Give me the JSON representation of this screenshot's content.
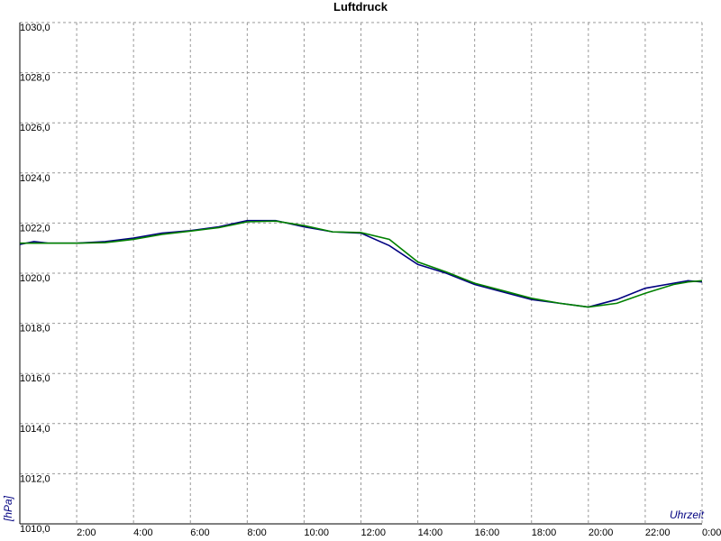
{
  "chart_data": {
    "type": "line",
    "title": "Luftdruck",
    "y_label": "[hPa]",
    "x_label": "Uhrzeit",
    "x": [
      0,
      0.5,
      1,
      2,
      3,
      4,
      5,
      6,
      7,
      8,
      9,
      10,
      11,
      12,
      13,
      14,
      15,
      16,
      17,
      18,
      19,
      20,
      21,
      22,
      23,
      23.5,
      24
    ],
    "series": [
      {
        "color": "#000080",
        "values": [
          1021.15,
          1021.26,
          1021.2,
          1021.2,
          1021.26,
          1021.4,
          1021.6,
          1021.7,
          1021.85,
          1022.1,
          1022.1,
          1021.85,
          1021.65,
          1021.6,
          1021.1,
          1020.35,
          1020.0,
          1019.55,
          1019.25,
          1018.95,
          1018.8,
          1018.65,
          1018.95,
          1019.4,
          1019.6,
          1019.7,
          1019.65
        ]
      },
      {
        "color": "#008000",
        "values": [
          1021.2,
          1021.2,
          1021.2,
          1021.2,
          1021.22,
          1021.35,
          1021.55,
          1021.68,
          1021.82,
          1022.05,
          1022.08,
          1021.9,
          1021.65,
          1021.62,
          1021.35,
          1020.45,
          1020.05,
          1019.6,
          1019.3,
          1019.0,
          1018.8,
          1018.65,
          1018.8,
          1019.2,
          1019.55,
          1019.65,
          1019.7
        ]
      }
    ],
    "xlim": [
      0,
      24
    ],
    "xticks": [
      {
        "value": 2,
        "label": "2:00"
      },
      {
        "value": 4,
        "label": "4:00"
      },
      {
        "value": 6,
        "label": "6:00"
      },
      {
        "value": 8,
        "label": "8:00"
      },
      {
        "value": 10,
        "label": "10:00"
      },
      {
        "value": 12,
        "label": "12:00"
      },
      {
        "value": 14,
        "label": "14:00"
      },
      {
        "value": 16,
        "label": "16:00"
      },
      {
        "value": 18,
        "label": "18:00"
      },
      {
        "value": 20,
        "label": "20:00"
      },
      {
        "value": 22,
        "label": "22:00"
      },
      {
        "value": 24,
        "label": "0:00"
      }
    ],
    "ylim": [
      1010,
      1030
    ],
    "yticks": [
      {
        "value": 1010,
        "label": "1010,0"
      },
      {
        "value": 1012,
        "label": "1012,0"
      },
      {
        "value": 1014,
        "label": "1014,0"
      },
      {
        "value": 1016,
        "label": "1016,0"
      },
      {
        "value": 1018,
        "label": "1018,0"
      },
      {
        "value": 1020,
        "label": "1020,0"
      },
      {
        "value": 1022,
        "label": "1022,0"
      },
      {
        "value": 1024,
        "label": "1024,0"
      },
      {
        "value": 1026,
        "label": "1026,0"
      },
      {
        "value": 1028,
        "label": "1028,0"
      },
      {
        "value": 1030,
        "label": "1030,0"
      }
    ],
    "grid": true
  }
}
